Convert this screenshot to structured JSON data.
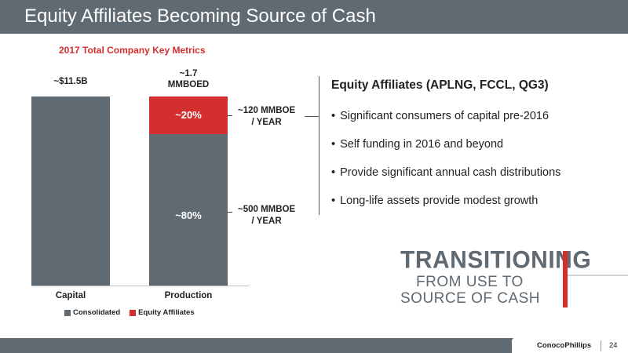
{
  "title": "Equity Affiliates Becoming Source of Cash",
  "chart_data": {
    "type": "bar",
    "stacked": true,
    "title": "2017 Total Company Key Metrics",
    "categories": [
      "Capital",
      "Production"
    ],
    "series": [
      {
        "name": "Consolidated",
        "color": "#5f6a72",
        "values": [
          100,
          80
        ]
      },
      {
        "name": "Equity Affiliates",
        "color": "#d32f2f",
        "values": [
          0,
          20
        ]
      }
    ],
    "total_labels": [
      "~$11.5B",
      "~1.7 MMBOED"
    ],
    "segment_labels": {
      "Production": {
        "Consolidated": "~80%",
        "Equity Affiliates": "~20%"
      }
    },
    "legend": [
      "Consolidated",
      "Equity Affiliates"
    ],
    "legend_position": "bottom",
    "ylim": [
      0,
      100
    ]
  },
  "volumes": {
    "equity": "~120 MMBOE / YEAR",
    "consolidated": "~500 MMBOE / YEAR"
  },
  "equity_section": {
    "heading": "Equity Affiliates (APLNG, FCCL, QG3)",
    "bullets": [
      "Significant consumers of capital pre-2016",
      "Self funding in 2016 and beyond",
      "Provide significant annual cash distributions",
      "Long-life assets provide modest growth"
    ],
    "bullet_symbol": "•"
  },
  "transition": {
    "line1": "TRANSITIONING",
    "line2": "FROM USE TO",
    "line3": "SOURCE OF CASH"
  },
  "footer": {
    "logo": "ConocoPhillips",
    "page_number": "24"
  }
}
